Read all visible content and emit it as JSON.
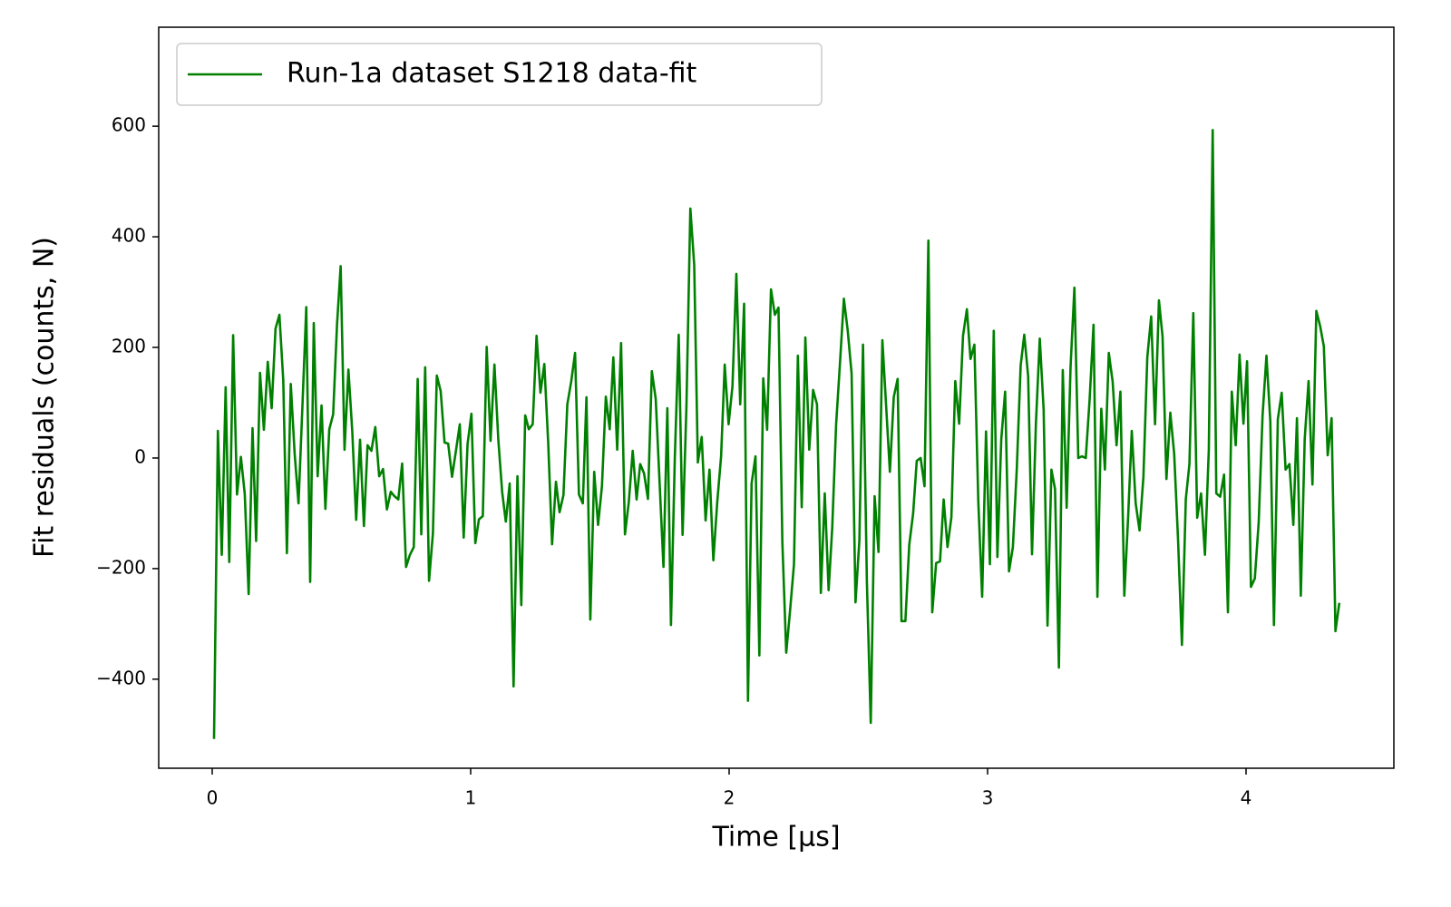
{
  "chart_data": {
    "type": "line",
    "xlabel": "Time [µs]",
    "ylabel": "Fit residuals (counts, N)",
    "xlim": [
      -0.207,
      4.572
    ],
    "ylim": [
      -561,
      779
    ],
    "xticks": [
      0,
      1,
      2,
      3,
      4
    ],
    "yticks": [
      {
        "value": -400,
        "label": "−400"
      },
      {
        "value": -200,
        "label": "−200"
      },
      0,
      200,
      400,
      600
    ],
    "grid": false,
    "legend": "upper left",
    "x": [
      0.007,
      0.022,
      0.037,
      0.052,
      0.066,
      0.081,
      0.096,
      0.111,
      0.126,
      0.141,
      0.156,
      0.17,
      0.185,
      0.2,
      0.215,
      0.23,
      0.245,
      0.26,
      0.275,
      0.289,
      0.304,
      0.319,
      0.334,
      0.349,
      0.364,
      0.379,
      0.393,
      0.408,
      0.423,
      0.438,
      0.453,
      0.468,
      0.483,
      0.497,
      0.512,
      0.527,
      0.542,
      0.557,
      0.572,
      0.587,
      0.601,
      0.616,
      0.631,
      0.646,
      0.661,
      0.676,
      0.691,
      0.705,
      0.72,
      0.735,
      0.75,
      0.765,
      0.78,
      0.795,
      0.809,
      0.824,
      0.839,
      0.854,
      0.869,
      0.884,
      0.899,
      0.913,
      0.928,
      0.943,
      0.958,
      0.973,
      0.988,
      1.003,
      1.018,
      1.032,
      1.047,
      1.062,
      1.077,
      1.092,
      1.107,
      1.122,
      1.136,
      1.151,
      1.166,
      1.181,
      1.196,
      1.211,
      1.225,
      1.24,
      1.255,
      1.27,
      1.285,
      1.3,
      1.315,
      1.33,
      1.344,
      1.359,
      1.374,
      1.389,
      1.404,
      1.419,
      1.434,
      1.448,
      1.463,
      1.478,
      1.493,
      1.508,
      1.523,
      1.538,
      1.552,
      1.567,
      1.582,
      1.597,
      1.612,
      1.627,
      1.642,
      1.656,
      1.671,
      1.686,
      1.701,
      1.716,
      1.731,
      1.746,
      1.761,
      1.775,
      1.79,
      1.805,
      1.82,
      1.835,
      1.85,
      1.865,
      1.879,
      1.894,
      1.909,
      1.924,
      1.939,
      1.954,
      1.969,
      1.983,
      1.998,
      2.013,
      2.028,
      2.043,
      2.058,
      2.073,
      2.087,
      2.102,
      2.117,
      2.132,
      2.147,
      2.162,
      2.177,
      2.191,
      2.206,
      2.221,
      2.236,
      2.251,
      2.266,
      2.281,
      2.295,
      2.31,
      2.325,
      2.34,
      2.355,
      2.37,
      2.385,
      2.399,
      2.414,
      2.429,
      2.444,
      2.459,
      2.474,
      2.489,
      2.504,
      2.518,
      2.533,
      2.548,
      2.563,
      2.578,
      2.593,
      2.608,
      2.622,
      2.637,
      2.652,
      2.667,
      2.682,
      2.697,
      2.712,
      2.726,
      2.741,
      2.756,
      2.771,
      2.786,
      2.801,
      2.816,
      2.83,
      2.845,
      2.86,
      2.875,
      2.89,
      2.905,
      2.92,
      2.934,
      2.949,
      2.964,
      2.979,
      2.994,
      3.009,
      3.024,
      3.038,
      3.053,
      3.068,
      3.083,
      3.098,
      3.113,
      3.128,
      3.142,
      3.157,
      3.172,
      3.187,
      3.202,
      3.217,
      3.232,
      3.247,
      3.261,
      3.276,
      3.291,
      3.306,
      3.321,
      3.336,
      3.351,
      3.365,
      3.38,
      3.395,
      3.41,
      3.425,
      3.44,
      3.454,
      3.469,
      3.484,
      3.499,
      3.514,
      3.529,
      3.544,
      3.558,
      3.573,
      3.588,
      3.603,
      3.618,
      3.633,
      3.648,
      3.663,
      3.677,
      3.692,
      3.707,
      3.722,
      3.737,
      3.752,
      3.767,
      3.781,
      3.796,
      3.811,
      3.826,
      3.841,
      3.856,
      3.871,
      3.885,
      3.9,
      3.915,
      3.93,
      3.945,
      3.96,
      3.975,
      3.99,
      4.004,
      4.019,
      4.034,
      4.049,
      4.064,
      4.079,
      4.094,
      4.108,
      4.123,
      4.138,
      4.153,
      4.168,
      4.183,
      4.197,
      4.212,
      4.227,
      4.242,
      4.257,
      4.272,
      4.287,
      4.301,
      4.316,
      4.331,
      4.346,
      4.361
    ],
    "series": [
      {
        "name": "Run-1a dataset S1218 data-fit",
        "color": "#008000",
        "values": [
          -508,
          49,
          -175,
          128,
          -188,
          222,
          -66,
          2,
          -65,
          -246,
          54,
          -150,
          154,
          51,
          174,
          90,
          234,
          259,
          140,
          -172,
          134,
          8,
          -82,
          93,
          273,
          -224,
          244,
          -33,
          95,
          -92,
          52,
          79,
          242,
          347,
          15,
          160,
          48,
          -112,
          33,
          -123,
          23,
          13,
          56,
          -33,
          -20,
          -93,
          -61,
          -69,
          -75,
          -10,
          -197,
          -175,
          -161,
          143,
          -138,
          164,
          -222,
          -136,
          149,
          121,
          28,
          26,
          -34,
          13,
          61,
          -144,
          25,
          80,
          -154,
          -111,
          -105,
          201,
          31,
          169,
          33,
          -62,
          -115,
          -46,
          -413,
          -33,
          -266,
          77,
          52,
          61,
          221,
          118,
          170,
          28,
          -156,
          -43,
          -98,
          -67,
          97,
          138,
          190,
          -66,
          -82,
          110,
          -292,
          -25,
          -121,
          -51,
          111,
          52,
          182,
          15,
          208,
          -138,
          -79,
          13,
          -75,
          -11,
          -28,
          -74,
          157,
          107,
          -44,
          -197,
          90,
          -302,
          2,
          223,
          -139,
          95,
          451,
          349,
          -8,
          38,
          -113,
          -21,
          -185,
          -80,
          3,
          169,
          61,
          130,
          333,
          97,
          279,
          -439,
          -46,
          3,
          -357,
          144,
          51,
          305,
          259,
          272,
          -152,
          -352,
          -275,
          -192,
          185,
          -89,
          218,
          15,
          123,
          97,
          -244,
          -64,
          -239,
          -126,
          61,
          172,
          288,
          230,
          152,
          -261,
          -149,
          205,
          -223,
          -479,
          -69,
          -170,
          213,
          90,
          -25,
          110,
          143,
          -295,
          -295,
          -157,
          -100,
          -5,
          0,
          -51,
          393,
          -279,
          -190,
          -187,
          -75,
          -161,
          -107,
          139,
          62,
          221,
          269,
          179,
          205,
          -77,
          -251,
          48,
          -192,
          230,
          -179,
          34,
          120,
          -205,
          -161,
          -20,
          167,
          223,
          148,
          -174,
          62,
          216,
          87,
          -303,
          -21,
          -56,
          -379,
          159,
          -90,
          164,
          308,
          0,
          3,
          0,
          107,
          241,
          -251,
          89,
          -21,
          190,
          138,
          23,
          120,
          -249,
          -105,
          49,
          -82,
          -131,
          -34,
          182,
          256,
          61,
          285,
          220,
          -38,
          82,
          8,
          -148,
          -338,
          -74,
          -11,
          262,
          -108,
          -64,
          -175,
          15,
          593,
          -64,
          -70,
          -30,
          -279,
          120,
          23,
          187,
          62,
          175,
          -233,
          -218,
          -116,
          77,
          185,
          66,
          -302,
          70,
          118,
          -21,
          -11,
          -121,
          72,
          -249,
          34,
          139,
          -48,
          266,
          238,
          202,
          5,
          72,
          -313,
          -262
        ]
      }
    ]
  }
}
